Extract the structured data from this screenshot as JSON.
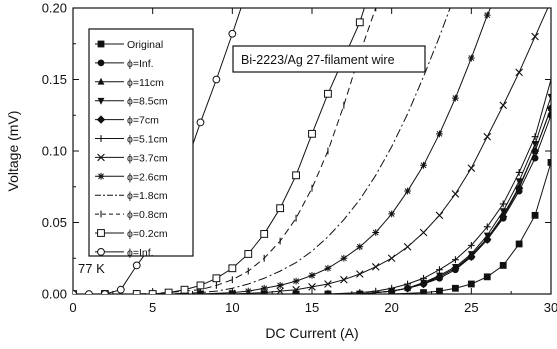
{
  "chart_data": {
    "type": "line",
    "title": "",
    "annotation": "Bi-2223/Ag 27-filament wire",
    "temperature_label": "77 K",
    "xlabel": "DC Current   (A)",
    "ylabel": "Voltage   (mV)",
    "xlim": [
      0,
      30
    ],
    "ylim": [
      0,
      0.2
    ],
    "xticks": [
      "0",
      "5",
      "10",
      "15",
      "20",
      "25",
      "30"
    ],
    "yticks": [
      "0.00",
      "0.05",
      "0.10",
      "0.15",
      "0.20"
    ],
    "grid": false,
    "legend_position": "top-left",
    "series": [
      {
        "name": "Original",
        "marker": "square-filled",
        "dash": "solid",
        "x": [
          0,
          2,
          4,
          6,
          8,
          10,
          12,
          14,
          16,
          18,
          20,
          22,
          23,
          24,
          25,
          26,
          27,
          28,
          29,
          30
        ],
        "y": [
          0,
          0,
          0,
          0,
          0,
          0,
          0,
          0,
          0,
          0,
          0,
          0.001,
          0.002,
          0.004,
          0.007,
          0.012,
          0.02,
          0.035,
          0.055,
          0.092
        ]
      },
      {
        "name": "ϕ=Inf.",
        "marker": "circle-filled",
        "dash": "solid",
        "x": [
          0,
          2,
          4,
          6,
          8,
          10,
          12,
          14,
          16,
          18,
          20,
          21,
          22,
          23,
          24,
          25,
          26,
          27,
          28,
          29,
          30
        ],
        "y": [
          0,
          0,
          0,
          0,
          0,
          0,
          0,
          0,
          0,
          0,
          0.002,
          0.004,
          0.007,
          0.011,
          0.017,
          0.026,
          0.038,
          0.053,
          0.072,
          0.095,
          0.125
        ]
      },
      {
        "name": "ϕ=11cm",
        "marker": "triangle-up-filled",
        "dash": "solid",
        "x": [
          0,
          2,
          4,
          6,
          8,
          10,
          12,
          14,
          16,
          18,
          20,
          21,
          22,
          23,
          24,
          25,
          26,
          27,
          28,
          29,
          30
        ],
        "y": [
          0,
          0,
          0,
          0,
          0,
          0,
          0,
          0,
          0,
          0,
          0.002,
          0.004,
          0.008,
          0.012,
          0.018,
          0.027,
          0.039,
          0.055,
          0.075,
          0.1,
          0.13
        ]
      },
      {
        "name": "ϕ=8.5cm",
        "marker": "triangle-down-filled",
        "dash": "solid",
        "x": [
          0,
          2,
          4,
          6,
          8,
          10,
          12,
          14,
          16,
          18,
          20,
          21,
          22,
          23,
          24,
          25,
          26,
          27,
          28,
          29,
          30
        ],
        "y": [
          0,
          0,
          0,
          0,
          0,
          0,
          0,
          0,
          0,
          0,
          0.002,
          0.004,
          0.008,
          0.013,
          0.019,
          0.028,
          0.041,
          0.058,
          0.079,
          0.105,
          0.138
        ]
      },
      {
        "name": "ϕ=7cm",
        "marker": "diamond-filled",
        "dash": "solid",
        "x": [
          0,
          2,
          4,
          6,
          8,
          10,
          12,
          14,
          16,
          18,
          20,
          21,
          22,
          23,
          24,
          25,
          26,
          27,
          28,
          29,
          30
        ],
        "y": [
          0,
          0,
          0,
          0,
          0,
          0,
          0,
          0,
          0,
          0,
          0.002,
          0.004,
          0.007,
          0.012,
          0.018,
          0.026,
          0.038,
          0.054,
          0.074,
          0.1,
          0.13
        ]
      },
      {
        "name": "ϕ=5.1cm",
        "marker": "plus",
        "dash": "solid",
        "x": [
          0,
          2,
          4,
          6,
          8,
          10,
          12,
          14,
          16,
          18,
          19,
          20,
          21,
          22,
          23,
          24,
          25,
          26,
          27,
          28,
          29,
          30
        ],
        "y": [
          0,
          0,
          0,
          0,
          0,
          0,
          0,
          0,
          0,
          0.001,
          0.002,
          0.004,
          0.007,
          0.011,
          0.017,
          0.024,
          0.034,
          0.047,
          0.063,
          0.085,
          0.11,
          0.15
        ]
      },
      {
        "name": "ϕ=3.7cm",
        "marker": "x",
        "dash": "solid",
        "x": [
          0,
          2,
          4,
          6,
          8,
          10,
          12,
          13,
          14,
          15,
          16,
          17,
          18,
          19,
          20,
          21,
          22,
          23,
          24,
          25,
          26,
          27,
          28,
          29,
          30
        ],
        "y": [
          0,
          0,
          0,
          0,
          0,
          0,
          0.001,
          0.002,
          0.003,
          0.005,
          0.007,
          0.01,
          0.014,
          0.019,
          0.025,
          0.033,
          0.043,
          0.055,
          0.07,
          0.088,
          0.11,
          0.132,
          0.155,
          0.18,
          0.205
        ]
      },
      {
        "name": "ϕ=2.6cm",
        "marker": "asterisk",
        "dash": "solid",
        "x": [
          0,
          2,
          4,
          6,
          8,
          10,
          11,
          12,
          13,
          14,
          15,
          16,
          17,
          18,
          19,
          20,
          21,
          22,
          23,
          24,
          25,
          26,
          27
        ],
        "y": [
          0,
          0,
          0,
          0,
          0,
          0.001,
          0.002,
          0.004,
          0.006,
          0.009,
          0.013,
          0.018,
          0.025,
          0.033,
          0.043,
          0.056,
          0.072,
          0.09,
          0.112,
          0.137,
          0.165,
          0.195,
          0.22
        ]
      },
      {
        "name": "ϕ=1.8cm",
        "marker": "none",
        "dash": "dashdot",
        "x": [
          0,
          4,
          6,
          8,
          9,
          10,
          11,
          12,
          13,
          14,
          15,
          16,
          17,
          18,
          19,
          20,
          21,
          22,
          23,
          24
        ],
        "y": [
          0,
          0,
          0,
          0.001,
          0.002,
          0.004,
          0.007,
          0.011,
          0.016,
          0.022,
          0.03,
          0.04,
          0.052,
          0.066,
          0.083,
          0.103,
          0.126,
          0.152,
          0.18,
          0.21
        ]
      },
      {
        "name": "ϕ=0.8cm",
        "marker": "tick",
        "dash": "dashed",
        "x": [
          0,
          2,
          4,
          6,
          7,
          8,
          9,
          10,
          11,
          12,
          13,
          14,
          15,
          16,
          17,
          18,
          19,
          20
        ],
        "y": [
          0,
          0,
          0,
          0.001,
          0.002,
          0.003,
          0.006,
          0.01,
          0.016,
          0.025,
          0.037,
          0.053,
          0.074,
          0.1,
          0.132,
          0.168,
          0.2,
          0.23
        ]
      },
      {
        "name": "ϕ=0.2cm",
        "marker": "square-open",
        "dash": "solid",
        "x": [
          0,
          2,
          4,
          5,
          6,
          7,
          8,
          9,
          10,
          11,
          12,
          13,
          14,
          15,
          16,
          17,
          18,
          19
        ],
        "y": [
          0,
          0,
          0,
          0,
          0.001,
          0.003,
          0.006,
          0.011,
          0.018,
          0.028,
          0.042,
          0.06,
          0.083,
          0.112,
          0.14,
          0.165,
          0.19,
          0.225
        ]
      },
      {
        "name": "ϕ=Inf.",
        "marker": "circle-open",
        "dash": "solid",
        "x": [
          0,
          1,
          2,
          3,
          4,
          5,
          6,
          7,
          8,
          9,
          10,
          11,
          12
        ],
        "y": [
          0,
          0,
          0,
          0.003,
          0.02,
          0.035,
          0.053,
          0.088,
          0.12,
          0.15,
          0.182,
          0.215,
          0.25
        ]
      }
    ]
  }
}
